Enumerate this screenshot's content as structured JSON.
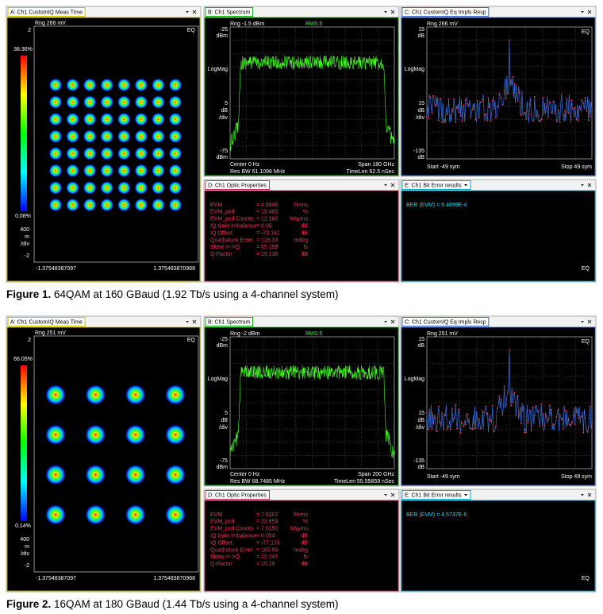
{
  "figures": [
    {
      "panels": {
        "a": {
          "tab": "A: Ch1 CustomIQ Meas Time",
          "range": "Rng 266 mV",
          "eq": "EQ",
          "y_top": "2",
          "pct_top": "38.36%",
          "pct_bottom": "0.08%",
          "scale": "400",
          "unit": "m",
          "div": "/div",
          "y_bottom": "-2",
          "x_left": "-1.37548387097",
          "x_right": "1.375483870968"
        },
        "b": {
          "tab": "B: Ch1 Spectrum",
          "range": "Rng -1.5 dBm",
          "rms": "RMS:5",
          "y_top": "-25",
          "y_top_unit": "dBm",
          "mode": "LogMag",
          "scale": "5",
          "scale_unit": "dB",
          "div": "/div",
          "y_bottom": "-75",
          "y_bottom_unit": "dBm",
          "center": "Center 0  Hz",
          "span": "Span 180 GHz",
          "res_bw": "Res BW 61.1098 MHz",
          "timelen": "TimeLen 62.5 nSec"
        },
        "c": {
          "tab": "C: Ch1 CustomIQ Eq Impls Resp",
          "range": "Rng 266 mV",
          "eq": "EQ",
          "y_top": "15",
          "y_top_unit": "dB",
          "mode": "LogMag",
          "scale": "15",
          "scale_unit": "dB",
          "div": "/div",
          "y_bottom": "-135",
          "y_bottom_unit": "dB",
          "start": "Start -49  sym",
          "stop": "Stop 49  sym"
        },
        "d": {
          "tab": "D: Ch1 Optic Properties",
          "rows": [
            [
              "EVM",
              "= 4.8846",
              "%rms"
            ],
            [
              "EVM_pcd",
              "= 19.482",
              "%"
            ],
            [
              "EVM_pcd Counts",
              "= 12.280",
              "Msyms"
            ],
            [
              "IQ Gain Imbalance",
              "= 0.05",
              "dB"
            ],
            [
              "IQ Offset",
              "= -73.161",
              "dB"
            ],
            [
              "Quadrature Error",
              "= 126.33",
              "mdeg"
            ],
            [
              "Skew I<->Q",
              "= 65.159",
              "fs"
            ],
            [
              "Q-Factor",
              "= 19.136",
              "dB"
            ]
          ]
        },
        "e": {
          "tab": "E: Ch1 Bit Error results",
          "ber": "BER (EVM) = 9.4899E-4",
          "eq": "EQ"
        }
      },
      "caption": {
        "label": "Figure 1.",
        "text": " 64QAM at 160 GBaud (1.92 Tb/s using a 4-channel system)"
      }
    },
    {
      "panels": {
        "a": {
          "tab": "A: Ch1 CustomIQ Meas Time",
          "range": "Rng 251 mV",
          "eq": "EQ",
          "y_top": "2",
          "pct_top": "66.05%",
          "pct_bottom": "0.14%",
          "scale": "400",
          "unit": "m",
          "div": "/div",
          "y_bottom": "-2",
          "x_left": "-1.37548387097",
          "x_right": "1.375483870968"
        },
        "b": {
          "tab": "B: Ch1 Spectrum",
          "range": "Rng -2 dBm",
          "rms": "RMS:5",
          "y_top": "-25",
          "y_top_unit": "dBm",
          "mode": "LogMag",
          "scale": "5",
          "scale_unit": "dB",
          "div": "/div",
          "y_bottom": "-75",
          "y_bottom_unit": "dBm",
          "center": "Center 0  Hz",
          "span": "Span 200 GHz",
          "res_bw": "Res BW 68.7485 MHz",
          "timelen": "TimeLen 55.55859 nSec"
        },
        "c": {
          "tab": "C: Ch1 CustomIQ Eq Impls Resp",
          "range": "Rng 251 mV",
          "eq": "EQ",
          "y_top": "15",
          "y_top_unit": "dB",
          "mode": "LogMag",
          "scale": "15",
          "scale_unit": "dB",
          "div": "/div",
          "y_bottom": "-135",
          "y_bottom_unit": "dB",
          "start": "Start -49  sym",
          "stop": "Stop 49  sym"
        },
        "d": {
          "tab": "D: Ch1 Optic Properties",
          "rows": [
            [
              "EVM",
              "= 7.6207",
              "%rms"
            ],
            [
              "EVM_pcd",
              "= 33.659",
              "%"
            ],
            [
              "EVM_pcd Counts",
              "= 7.0150",
              "Msyms"
            ],
            [
              "IQ Gain Imbalance",
              "= 0.054",
              "dB"
            ],
            [
              "IQ Offset",
              "= -77.176",
              "dB"
            ],
            [
              "Quadrature Error",
              "= 160.99",
              "mdeg"
            ],
            [
              "Skew I<->Q",
              "= 15.747",
              "fs"
            ],
            [
              "Q-Factor",
              "= 15.19",
              "dB"
            ]
          ]
        },
        "e": {
          "tab": "E: Ch1 Bit Error results",
          "ber": "BER (EVM) = 4.5737E-6",
          "eq": "EQ"
        }
      },
      "caption": {
        "label": "Figure 2.",
        "text": " 16QAM at 180 GBaud (1.44 Tb/s using a 4-channel system)"
      }
    }
  ]
}
